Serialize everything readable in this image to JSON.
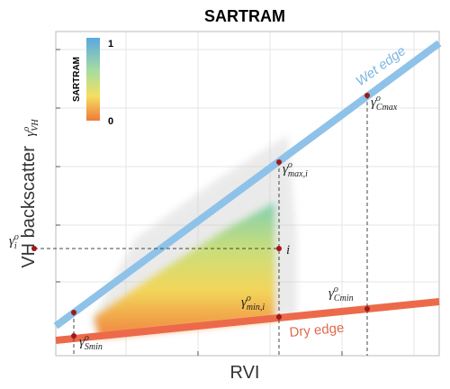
{
  "title": "SARTRAM",
  "y_axis": {
    "label": "VH backscatter",
    "symbol": {
      "base": "γ",
      "sup": "o",
      "sub": "VH"
    }
  },
  "x_axis": {
    "label": "RVI"
  },
  "colorbar": {
    "title": "SARTRAM",
    "max": "1",
    "min": "0"
  },
  "edges": {
    "wet": "Wet edge",
    "dry": "Dry edge"
  },
  "points": {
    "gamma_i": {
      "base": "γ",
      "sup": "o",
      "sub": "i"
    },
    "i": "i",
    "gamma_max_i": {
      "base": "γ",
      "sup": "o",
      "sub": "max,i"
    },
    "gamma_min_i": {
      "base": "γ",
      "sup": "o",
      "sub": "min,i"
    },
    "gamma_cmax": {
      "base": "γ",
      "sup": "o",
      "sub": "Cmax"
    },
    "gamma_cmin": {
      "base": "γ",
      "sup": "o",
      "sub": "Cmin"
    },
    "gamma_smin": {
      "base": "γ",
      "sup": "o",
      "sub": "Smin"
    }
  }
}
